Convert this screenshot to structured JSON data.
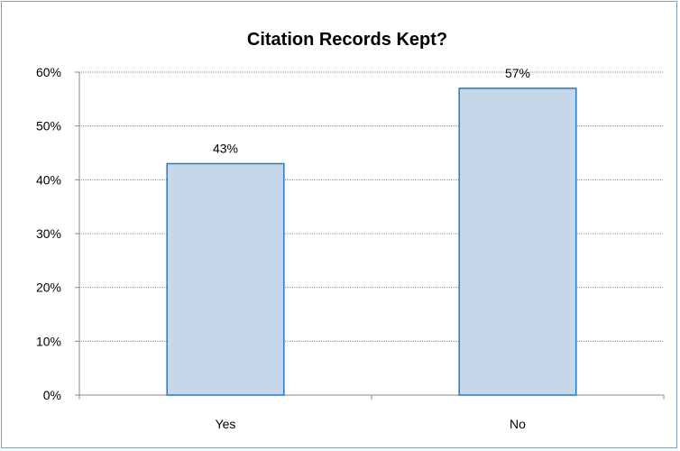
{
  "chart_data": {
    "type": "bar",
    "title": "Citation Records Kept?",
    "xlabel": "",
    "ylabel": "",
    "categories": [
      "Yes",
      "No"
    ],
    "values": [
      43,
      57
    ],
    "data_labels": [
      "43%",
      "57%"
    ],
    "ylim": [
      0,
      60
    ],
    "yticks": [
      0,
      10,
      20,
      30,
      40,
      50,
      60
    ],
    "ytick_labels": [
      "0%",
      "10%",
      "20%",
      "30%",
      "40%",
      "50%",
      "60%"
    ],
    "grid": true,
    "legend": "none",
    "colors": {
      "bar_fill": "#c5d7e9",
      "bar_stroke": "#1f7cc4",
      "grid": "#8c8c8c",
      "axis": "#888888",
      "border": "#7f9cc0"
    }
  }
}
